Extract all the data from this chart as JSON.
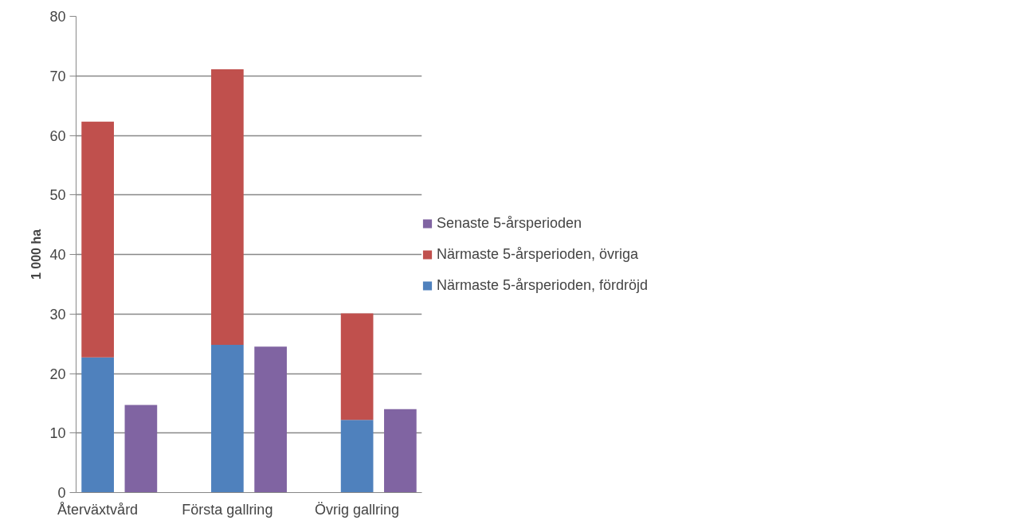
{
  "chart_data": {
    "type": "bar",
    "stacked": true,
    "ylabel": "1 000 ha",
    "categories": [
      "Återväxtvård",
      null,
      "Första gallring",
      null,
      "Övrig gallring",
      null
    ],
    "series": [
      {
        "name": "Närmaste 5-årsperioden, fördröjd",
        "color": "#4f81bd",
        "values": [
          22.7,
          null,
          24.8,
          null,
          12.2,
          null
        ]
      },
      {
        "name": "Närmaste 5-årsperioden, övriga",
        "color": "#c0504d",
        "values": [
          39.6,
          null,
          46.3,
          null,
          17.9,
          null
        ]
      },
      {
        "name": "Senaste 5-årsperioden",
        "color": "#8064a2",
        "values": [
          null,
          14.7,
          null,
          24.5,
          null,
          14.0
        ]
      }
    ],
    "ylim": [
      0,
      80
    ],
    "yticks": [
      0,
      10,
      20,
      30,
      40,
      50,
      60,
      70,
      80
    ],
    "grid": "y",
    "legend": "right"
  }
}
